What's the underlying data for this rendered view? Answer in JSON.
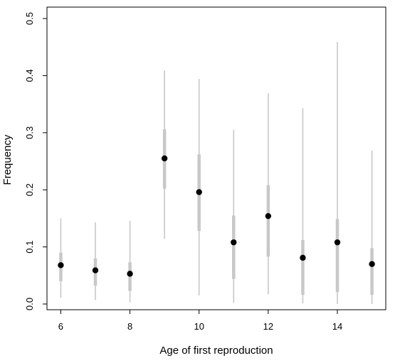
{
  "chart_data": {
    "type": "scatter",
    "title": "",
    "xlabel": "Age of first reproduction",
    "ylabel": "Frequency",
    "xlim": [
      5.6,
      15.4
    ],
    "ylim": [
      -0.01,
      0.52
    ],
    "x_ticks": [
      6,
      8,
      10,
      12,
      14
    ],
    "x_tick_labels": [
      "6",
      "8",
      "10",
      "12",
      "14"
    ],
    "y_ticks": [
      0.0,
      0.1,
      0.2,
      0.3,
      0.4,
      0.5
    ],
    "y_tick_labels": [
      "0.0",
      "0.1",
      "0.2",
      "0.3",
      "0.4",
      "0.5"
    ],
    "grid": false,
    "points": [
      {
        "x": 6,
        "y": 0.068,
        "thick": [
          0.04,
          0.09
        ],
        "thin": [
          0.011,
          0.15
        ]
      },
      {
        "x": 7,
        "y": 0.059,
        "thick": [
          0.032,
          0.08
        ],
        "thin": [
          0.007,
          0.143
        ]
      },
      {
        "x": 8,
        "y": 0.053,
        "thick": [
          0.023,
          0.073
        ],
        "thin": [
          0.003,
          0.146
        ]
      },
      {
        "x": 9,
        "y": 0.255,
        "thick": [
          0.202,
          0.306
        ],
        "thin": [
          0.114,
          0.409
        ]
      },
      {
        "x": 10,
        "y": 0.196,
        "thick": [
          0.128,
          0.262
        ],
        "thin": [
          0.015,
          0.394
        ]
      },
      {
        "x": 11,
        "y": 0.108,
        "thick": [
          0.044,
          0.155
        ],
        "thin": [
          0.002,
          0.305
        ]
      },
      {
        "x": 12,
        "y": 0.154,
        "thick": [
          0.083,
          0.208
        ],
        "thin": [
          0.017,
          0.369
        ]
      },
      {
        "x": 13,
        "y": 0.081,
        "thick": [
          0.016,
          0.112
        ],
        "thin": [
          0.001,
          0.343
        ]
      },
      {
        "x": 14,
        "y": 0.108,
        "thick": [
          0.021,
          0.149
        ],
        "thin": [
          0.0,
          0.459
        ]
      },
      {
        "x": 15,
        "y": 0.07,
        "thick": [
          0.016,
          0.098
        ],
        "thin": [
          0.0,
          0.269
        ]
      }
    ],
    "colors": {
      "point": "#000000",
      "interval": "#c8c8c8",
      "axis": "#000000"
    }
  }
}
